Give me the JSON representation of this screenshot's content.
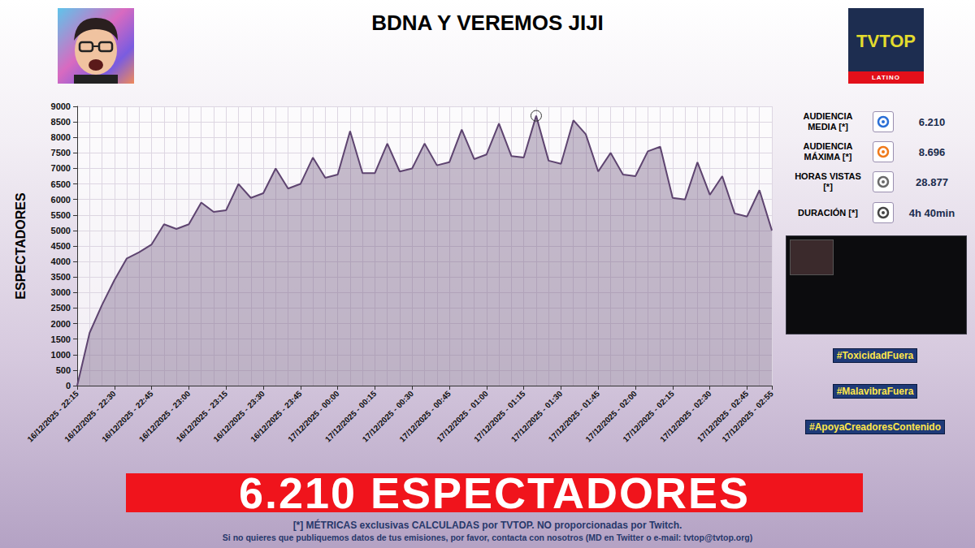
{
  "chart_data": {
    "type": "area",
    "title": "BDNA Y VEREMOS JIJI",
    "y_label": "ESPECTADORES",
    "categories": [
      "16/12/2025 - 22:15",
      null,
      null,
      "16/12/2025 - 22:30",
      null,
      null,
      "16/12/2025 - 22:45",
      null,
      null,
      "16/12/2025 - 23:00",
      null,
      null,
      "16/12/2025 - 23:15",
      null,
      null,
      "16/12/2025 - 23:30",
      null,
      null,
      "16/12/2025 - 23:45",
      null,
      null,
      "17/12/2025 - 00:00",
      null,
      null,
      "17/12/2025 - 00:15",
      null,
      null,
      "17/12/2025 - 00:30",
      null,
      null,
      "17/12/2025 - 00:45",
      null,
      null,
      "17/12/2025 - 01:00",
      null,
      null,
      "17/12/2025 - 01:15",
      null,
      null,
      "17/12/2025 - 01:30",
      null,
      null,
      "17/12/2025 - 01:45",
      null,
      null,
      "17/12/2025 - 02:00",
      null,
      null,
      "17/12/2025 - 02:15",
      null,
      null,
      "17/12/2025 - 02:30",
      null,
      null,
      "17/12/2025 - 02:45",
      null,
      "17/12/2025 - 02:55"
    ],
    "values": [
      0,
      1700,
      2600,
      3400,
      4100,
      4300,
      4550,
      5200,
      5050,
      5200,
      5900,
      5600,
      5650,
      6500,
      6050,
      6200,
      7000,
      6350,
      6500,
      7350,
      6700,
      6800,
      8200,
      6850,
      6850,
      7800,
      6900,
      7000,
      7800,
      7100,
      7200,
      8250,
      7300,
      7450,
      8450,
      7400,
      7350,
      8696,
      7250,
      7150,
      8550,
      8100,
      6900,
      7500,
      6800,
      6750,
      7550,
      7700,
      6050,
      6000,
      7200,
      6150,
      6750,
      5550,
      5450,
      6300,
      5000
    ],
    "color": "#5e4470",
    "ylim": [
      0,
      9000
    ],
    "yticks": [
      0,
      500,
      1000,
      1500,
      2000,
      2500,
      3000,
      3500,
      4000,
      4500,
      5000,
      5500,
      6000,
      6500,
      7000,
      7500,
      8000,
      8500,
      9000
    ],
    "grid": true
  },
  "logo": {
    "text": "TVTOP",
    "subtitle": "LATINO"
  },
  "stats": [
    {
      "label": "AUDIENCIA MEDIA [*]",
      "value": "6.210"
    },
    {
      "label": "AUDIENCIA MÁXIMA [*]",
      "value": "8.696"
    },
    {
      "label": "HORAS VISTAS [*]",
      "value": "28.877"
    },
    {
      "label": "DURACIÓN [*]",
      "value": "4h 40min"
    }
  ],
  "hashtags": [
    "#ToxicidadFuera",
    "#MalavibraFuera",
    "#ApoyaCreadoresContenido"
  ],
  "banner": "6.210 ESPECTADORES",
  "footer": [
    "[*] MÉTRICAS exclusivas CALCULADAS por TVTOP. NO proporcionadas por Twitch.",
    "Si no quieres que publiquemos datos de tus emisiones, por favor, contacta con nosotros (MD en Twitter o e-mail: tvtop@tvtop.org)"
  ]
}
